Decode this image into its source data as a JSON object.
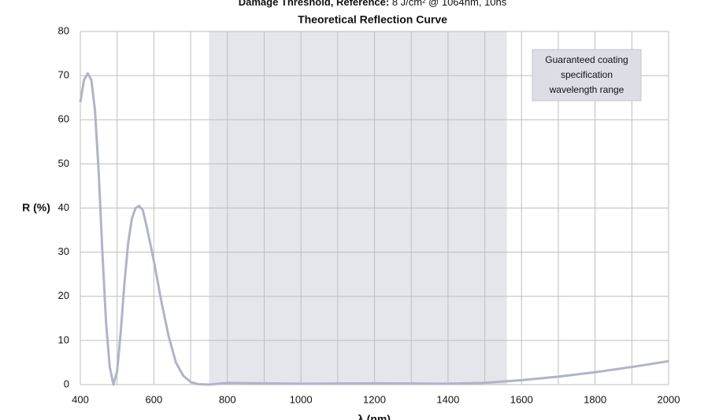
{
  "chart_data": {
    "type": "line",
    "pretitle_label": "Damage Threshold, Reference:",
    "pretitle_value": "8 J/cm² @ 1064nm, 10ns",
    "title": "Theoretical Reflection Curve",
    "y_label": "R (%)",
    "x_label": "λ (nm)",
    "annotation": [
      "Guaranteed coating",
      "specification",
      "wavelength range"
    ],
    "shaded_range": [
      750,
      1560
    ],
    "shade_color": "#e5e6ec",
    "x": [
      400,
      410,
      420,
      430,
      440,
      450,
      460,
      470,
      480,
      490,
      500,
      510,
      520,
      530,
      540,
      550,
      560,
      570,
      580,
      600,
      620,
      640,
      660,
      680,
      700,
      720,
      750,
      800,
      900,
      1000,
      1200,
      1400,
      1500,
      1600,
      1700,
      1800,
      1900,
      2000
    ],
    "series": [
      {
        "color": "#b1b4c7",
        "values": [
          64,
          69,
          70.5,
          69,
          62,
          48,
          30,
          14,
          4,
          0,
          3,
          12,
          23,
          32,
          37.5,
          40,
          40.5,
          39.5,
          36,
          28,
          19,
          11,
          5,
          2,
          0.6,
          0.1,
          0,
          0.4,
          0.3,
          0.2,
          0.3,
          0.2,
          0.4,
          1,
          1.8,
          2.8,
          4,
          5.3
        ]
      }
    ],
    "xlim": [
      400,
      2000
    ],
    "ylim": [
      0,
      80
    ],
    "xticks": [
      400,
      600,
      800,
      1000,
      1200,
      1400,
      1600,
      1800,
      2000
    ],
    "xgrid": [
      500,
      700,
      900,
      1100,
      1300,
      1500,
      1700,
      1900
    ],
    "yticks": [
      0,
      10,
      20,
      30,
      40,
      50,
      60,
      70,
      80
    ],
    "grid": true
  }
}
